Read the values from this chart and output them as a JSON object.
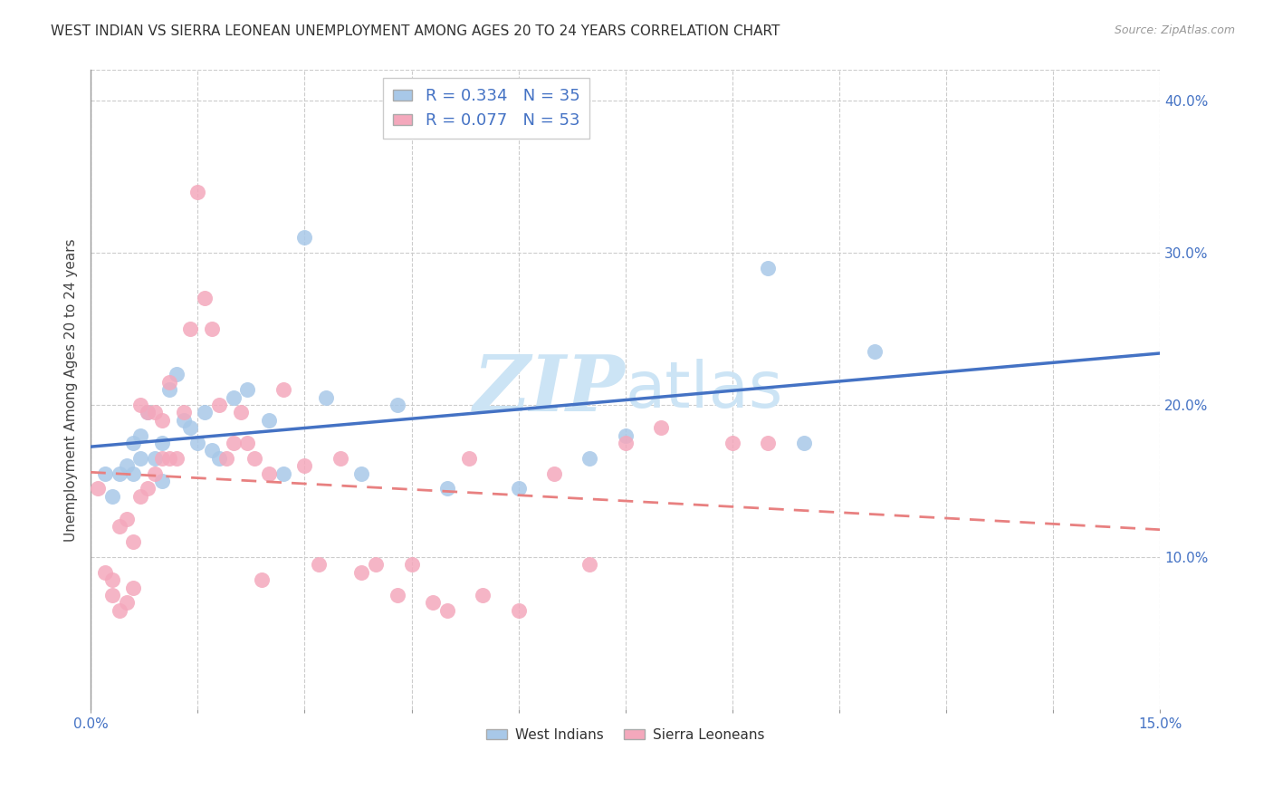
{
  "title": "WEST INDIAN VS SIERRA LEONEAN UNEMPLOYMENT AMONG AGES 20 TO 24 YEARS CORRELATION CHART",
  "source": "Source: ZipAtlas.com",
  "ylabel": "Unemployment Among Ages 20 to 24 years",
  "xlim": [
    0.0,
    0.15
  ],
  "ylim": [
    0.0,
    0.42
  ],
  "xtick_labels_ends": [
    "0.0%",
    "15.0%"
  ],
  "xtick_vals_ends": [
    0.0,
    0.15
  ],
  "xtick_minor_vals": [
    0.0,
    0.015,
    0.03,
    0.045,
    0.06,
    0.075,
    0.09,
    0.105,
    0.12,
    0.135,
    0.15
  ],
  "ytick_labels": [
    "10.0%",
    "20.0%",
    "30.0%",
    "40.0%"
  ],
  "ytick_vals": [
    0.1,
    0.2,
    0.3,
    0.4
  ],
  "west_indians_R": 0.334,
  "west_indians_N": 35,
  "sierra_leoneans_R": 0.077,
  "sierra_leoneans_N": 53,
  "west_indian_color": "#a8c8e8",
  "sierra_leonean_color": "#f4a8bc",
  "west_indian_line_color": "#4472c4",
  "sierra_leonean_line_color": "#e88080",
  "background_color": "#ffffff",
  "grid_color": "#cccccc",
  "watermark_color": "#cce4f5",
  "legend_label_1": "West Indians",
  "legend_label_2": "Sierra Leoneans",
  "west_indians_x": [
    0.002,
    0.003,
    0.004,
    0.005,
    0.006,
    0.006,
    0.007,
    0.007,
    0.008,
    0.009,
    0.01,
    0.01,
    0.011,
    0.012,
    0.013,
    0.014,
    0.015,
    0.016,
    0.017,
    0.018,
    0.02,
    0.022,
    0.025,
    0.027,
    0.03,
    0.033,
    0.038,
    0.043,
    0.05,
    0.06,
    0.07,
    0.075,
    0.095,
    0.1,
    0.11
  ],
  "west_indians_y": [
    0.155,
    0.14,
    0.155,
    0.16,
    0.155,
    0.175,
    0.165,
    0.18,
    0.195,
    0.165,
    0.15,
    0.175,
    0.21,
    0.22,
    0.19,
    0.185,
    0.175,
    0.195,
    0.17,
    0.165,
    0.205,
    0.21,
    0.19,
    0.155,
    0.31,
    0.205,
    0.155,
    0.2,
    0.145,
    0.145,
    0.165,
    0.18,
    0.29,
    0.175,
    0.235
  ],
  "sierra_leoneans_x": [
    0.001,
    0.002,
    0.003,
    0.003,
    0.004,
    0.004,
    0.005,
    0.005,
    0.006,
    0.006,
    0.007,
    0.007,
    0.008,
    0.008,
    0.009,
    0.009,
    0.01,
    0.01,
    0.011,
    0.011,
    0.012,
    0.013,
    0.014,
    0.015,
    0.016,
    0.017,
    0.018,
    0.019,
    0.02,
    0.021,
    0.022,
    0.023,
    0.024,
    0.025,
    0.027,
    0.03,
    0.032,
    0.035,
    0.038,
    0.04,
    0.043,
    0.045,
    0.048,
    0.05,
    0.053,
    0.055,
    0.06,
    0.065,
    0.07,
    0.075,
    0.08,
    0.09,
    0.095
  ],
  "sierra_leoneans_y": [
    0.145,
    0.09,
    0.085,
    0.075,
    0.12,
    0.065,
    0.125,
    0.07,
    0.08,
    0.11,
    0.14,
    0.2,
    0.145,
    0.195,
    0.155,
    0.195,
    0.165,
    0.19,
    0.165,
    0.215,
    0.165,
    0.195,
    0.25,
    0.34,
    0.27,
    0.25,
    0.2,
    0.165,
    0.175,
    0.195,
    0.175,
    0.165,
    0.085,
    0.155,
    0.21,
    0.16,
    0.095,
    0.165,
    0.09,
    0.095,
    0.075,
    0.095,
    0.07,
    0.065,
    0.165,
    0.075,
    0.065,
    0.155,
    0.095,
    0.175,
    0.185,
    0.175,
    0.175
  ]
}
